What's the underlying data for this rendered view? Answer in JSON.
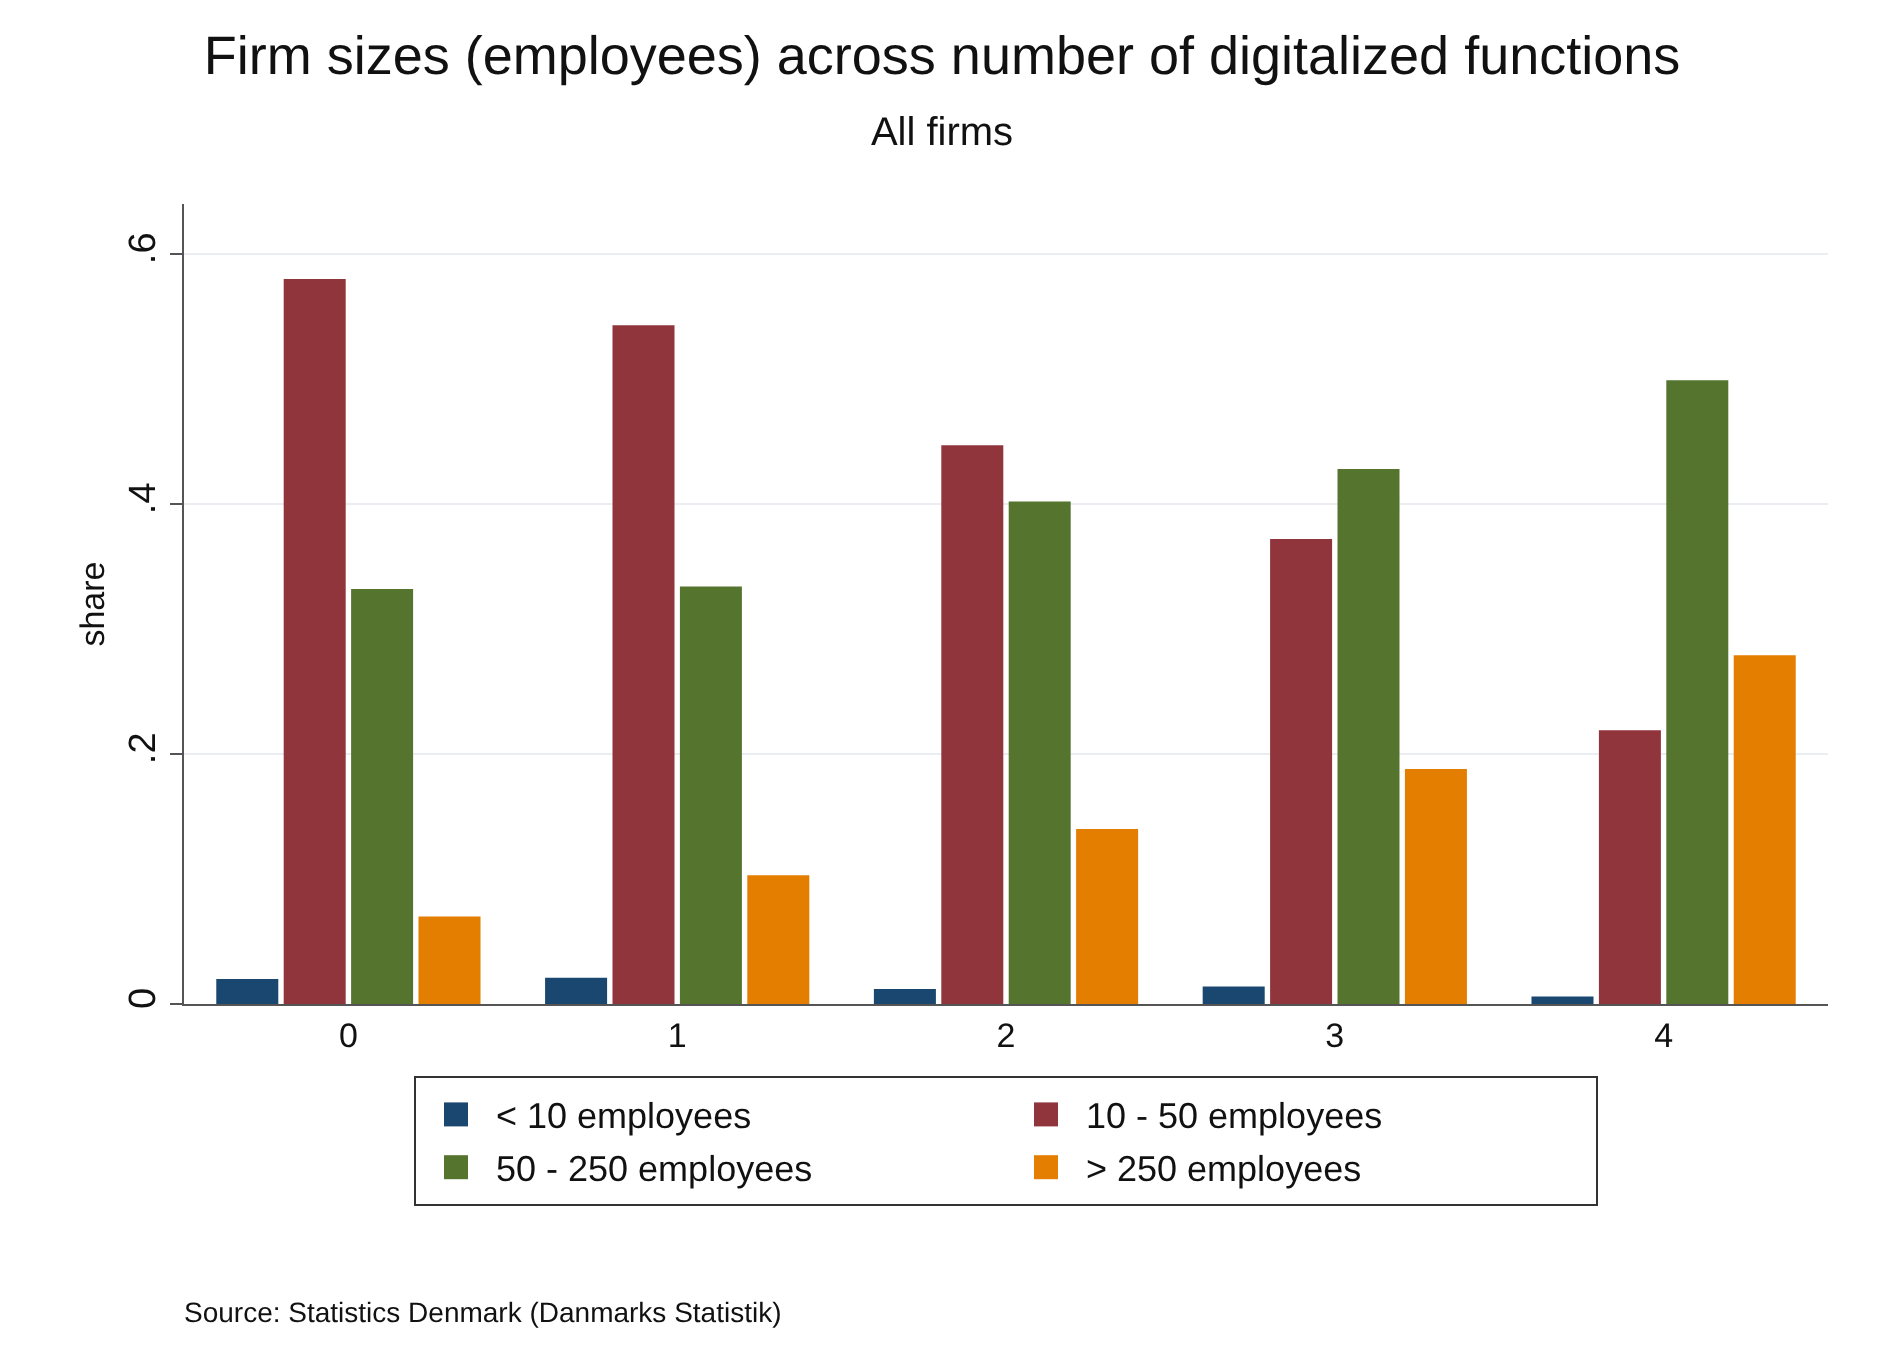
{
  "chart_data": {
    "type": "bar",
    "title": "Firm sizes (employees) across number of digitalized functions",
    "subtitle": "All firms",
    "ylabel": "share",
    "categories": [
      "0",
      "1",
      "2",
      "3",
      "4"
    ],
    "series": [
      {
        "name": "< 10 employees",
        "color": "#1a476f",
        "values": [
          0.02,
          0.021,
          0.012,
          0.014,
          0.006
        ]
      },
      {
        "name": "10 - 50 employees",
        "color": "#90353b",
        "values": [
          0.58,
          0.543,
          0.447,
          0.372,
          0.219
        ]
      },
      {
        "name": "50 - 250 employees",
        "color": "#55752f",
        "values": [
          0.332,
          0.334,
          0.402,
          0.428,
          0.499
        ]
      },
      {
        "name": "> 250 employees",
        "color": "#e37e00",
        "values": [
          0.07,
          0.103,
          0.14,
          0.188,
          0.279
        ]
      }
    ],
    "ylim": [
      0,
      0.64
    ],
    "yticks": [
      0,
      {
        "value": 0.2,
        "label": ".2"
      },
      {
        "value": 0.4,
        "label": ".4"
      },
      {
        "value": 0.6,
        "label": ".6"
      }
    ],
    "grid": "y",
    "legend": "bottom",
    "annotations": [
      "Source: Statistics Denmark (Danmarks Statistik)"
    ]
  }
}
